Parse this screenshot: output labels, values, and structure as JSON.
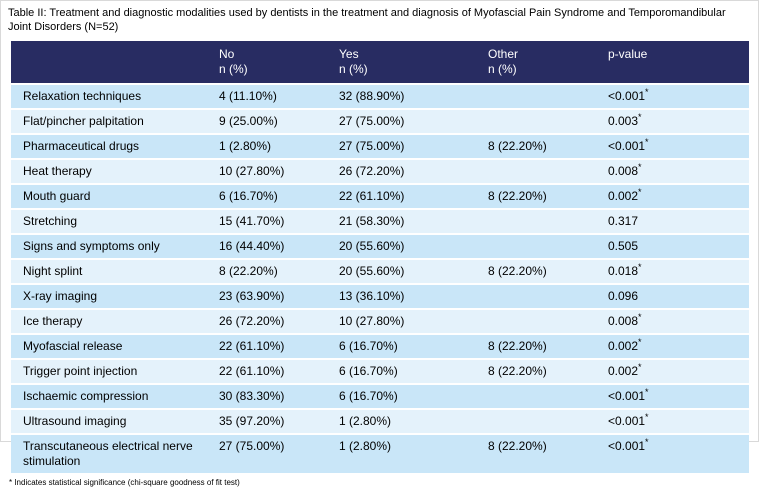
{
  "caption": "Table II: Treatment and diagnostic modalities used by dentists in the treatment and diagnosis of Myofascial Pain Syndrome and Temporomandibular Joint Disorders (N=52)",
  "footnote": "* Indicates statistical significance (chi-square goodness of fit test)",
  "colors": {
    "header_bg": "#282c62",
    "header_text": "#ffffff",
    "row_odd": "#c9e6f8",
    "row_even": "#e4f2fb"
  },
  "table": {
    "header": {
      "col_label": "",
      "cols": [
        {
          "label": "No",
          "sub": "n (%)"
        },
        {
          "label": "Yes",
          "sub": "n (%)"
        },
        {
          "label": "Other",
          "sub": "n (%)"
        },
        {
          "label": "p-value",
          "sub": ""
        }
      ]
    },
    "rows": [
      {
        "label": "Relaxation techniques",
        "no": "4 (11.10%)",
        "yes": "32 (88.90%)",
        "other": "",
        "p": "<0.001",
        "sig": true
      },
      {
        "label": "Flat/pincher palpitation",
        "no": "9 (25.00%)",
        "yes": "27 (75.00%)",
        "other": "",
        "p": "0.003",
        "sig": true
      },
      {
        "label": "Pharmaceutical drugs",
        "no": "1 (2.80%)",
        "yes": "27 (75.00%)",
        "other": "8 (22.20%)",
        "p": "<0.001",
        "sig": true
      },
      {
        "label": "Heat therapy",
        "no": "10 (27.80%)",
        "yes": "26 (72.20%)",
        "other": "",
        "p": "0.008",
        "sig": true
      },
      {
        "label": "Mouth guard",
        "no": "6 (16.70%)",
        "yes": "22 (61.10%)",
        "other": "8 (22.20%)",
        "p": "0.002",
        "sig": true
      },
      {
        "label": "Stretching",
        "no": "15 (41.70%)",
        "yes": "21 (58.30%)",
        "other": "",
        "p": "0.317",
        "sig": false
      },
      {
        "label": "Signs and symptoms only",
        "no": "16 (44.40%)",
        "yes": "20 (55.60%)",
        "other": "",
        "p": "0.505",
        "sig": false
      },
      {
        "label": "Night splint",
        "no": "8 (22.20%)",
        "yes": "20 (55.60%)",
        "other": "8 (22.20%)",
        "p": "0.018",
        "sig": true
      },
      {
        "label": "X-ray imaging",
        "no": "23 (63.90%)",
        "yes": "13 (36.10%)",
        "other": "",
        "p": "0.096",
        "sig": false
      },
      {
        "label": "Ice therapy",
        "no": "26 (72.20%)",
        "yes": "10 (27.80%)",
        "other": "",
        "p": "0.008",
        "sig": true
      },
      {
        "label": "Myofascial release",
        "no": "22 (61.10%)",
        "yes": "6 (16.70%)",
        "other": "8 (22.20%)",
        "p": "0.002",
        "sig": true
      },
      {
        "label": "Trigger point injection",
        "no": "22 (61.10%)",
        "yes": "6 (16.70%)",
        "other": "8 (22.20%)",
        "p": "0.002",
        "sig": true
      },
      {
        "label": "Ischaemic compression",
        "no": "30 (83.30%)",
        "yes": "6 (16.70%)",
        "other": "",
        "p": "<0.001",
        "sig": true
      },
      {
        "label": "Ultrasound imaging",
        "no": "35 (97.20%)",
        "yes": "1 (2.80%)",
        "other": "",
        "p": "<0.001",
        "sig": true
      },
      {
        "label": "Transcutaneous electrical nerve stimulation",
        "no": "27 (75.00%)",
        "yes": "1 (2.80%)",
        "other": "8 (22.20%)",
        "p": "<0.001",
        "sig": true
      }
    ]
  }
}
